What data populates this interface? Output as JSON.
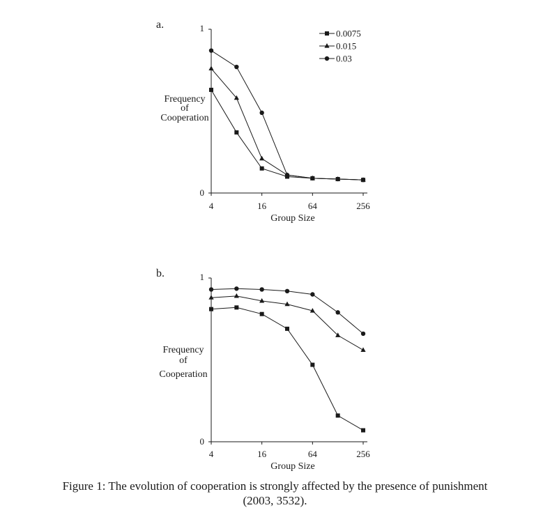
{
  "chart_data": [
    {
      "type": "line",
      "panel_label": "a.",
      "ylabel_lines": [
        "Frequency",
        "of",
        "Cooperation"
      ],
      "xlabel": "Group Size",
      "x_scale": "log2",
      "x": [
        4,
        8,
        16,
        32,
        64,
        128,
        256
      ],
      "xticks": [
        4,
        16,
        64,
        256
      ],
      "xlim": [
        4,
        256
      ],
      "yticks": [
        0,
        1
      ],
      "ylim": [
        0,
        1
      ],
      "legend": {
        "placement": "top-right"
      },
      "series": [
        {
          "name": "0.0075",
          "marker": "square",
          "values": [
            0.63,
            0.37,
            0.15,
            0.1,
            0.09,
            0.085,
            0.08
          ]
        },
        {
          "name": "0.015",
          "marker": "triangle",
          "values": [
            0.76,
            0.58,
            0.21,
            0.11,
            0.09,
            0.085,
            0.08
          ]
        },
        {
          "name": "0.03",
          "marker": "circle",
          "values": [
            0.87,
            0.77,
            0.49,
            0.11,
            0.09,
            0.085,
            0.08
          ]
        }
      ]
    },
    {
      "type": "line",
      "panel_label": "b.",
      "ylabel_lines": [
        "Frequency",
        "of",
        "Cooperation"
      ],
      "xlabel": "Group Size",
      "x_scale": "log2",
      "x": [
        4,
        8,
        16,
        32,
        64,
        128,
        256
      ],
      "xticks": [
        4,
        16,
        64,
        256
      ],
      "xlim": [
        4,
        256
      ],
      "yticks": [
        0,
        1
      ],
      "ylim": [
        0,
        1
      ],
      "series": [
        {
          "name": "0.0075",
          "marker": "square",
          "values": [
            0.81,
            0.82,
            0.78,
            0.69,
            0.47,
            0.16,
            0.07
          ]
        },
        {
          "name": "0.015",
          "marker": "triangle",
          "values": [
            0.88,
            0.89,
            0.86,
            0.84,
            0.8,
            0.65,
            0.56
          ]
        },
        {
          "name": "0.03",
          "marker": "circle",
          "values": [
            0.93,
            0.935,
            0.93,
            0.92,
            0.9,
            0.79,
            0.66
          ]
        }
      ]
    }
  ],
  "caption": {
    "line1": "Figure 1: The evolution of cooperation is strongly affected by the presence of punishment",
    "line2": "(2003, 3532)."
  }
}
